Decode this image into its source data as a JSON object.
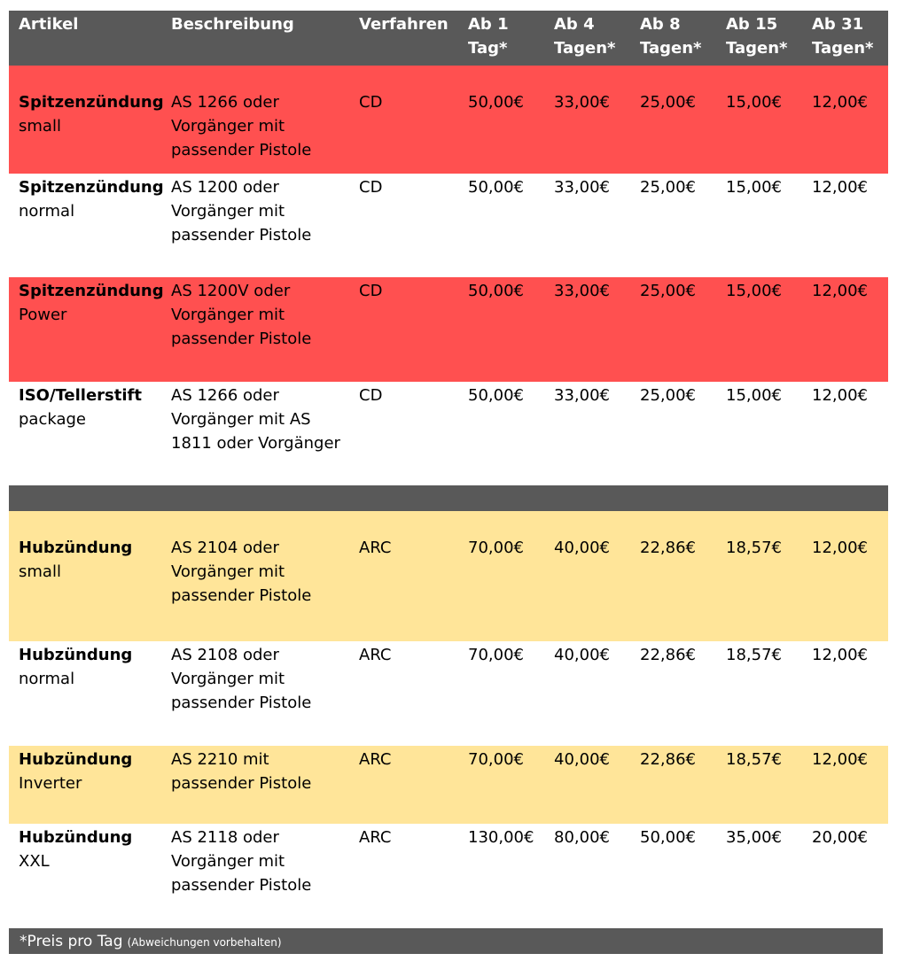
{
  "header": {
    "artikel": "Artikel",
    "beschreibung": "Beschreibung",
    "verfahren": "Verfahren",
    "p1": "Ab 1\nTag*",
    "p4": "Ab 4\nTagen*",
    "p8": "Ab 8\nTagen*",
    "p15": "Ab 15\nTagen*",
    "p31": "Ab 31\nTagen*"
  },
  "colors": {
    "header_bg": "#595959",
    "red_row": "#ff5050",
    "yellow_row": "#ffe599",
    "white_row": "#ffffff"
  },
  "group_cd": [
    {
      "name": "Spitzenzündung",
      "variant": "small",
      "desc": "AS 1266 oder Vorgänger mit passender Pistole",
      "proc": "CD",
      "p1": "50,00€",
      "p4": "33,00€",
      "p8": "25,00€",
      "p15": "15,00€",
      "p31": "12,00€"
    },
    {
      "name": "Spitzenzündung",
      "variant": "normal",
      "desc": "AS 1200 oder Vorgänger mit passender Pistole",
      "proc": "CD",
      "p1": "50,00€",
      "p4": "33,00€",
      "p8": "25,00€",
      "p15": "15,00€",
      "p31": "12,00€"
    },
    {
      "name": "Spitzenzündung",
      "variant": "Power",
      "desc": "AS 1200V oder Vorgänger mit passender Pistole",
      "proc": "CD",
      "p1": "50,00€",
      "p4": "33,00€",
      "p8": "25,00€",
      "p15": "15,00€",
      "p31": "12,00€"
    },
    {
      "name": "ISO/Tellerstift",
      "variant": "package",
      "desc": "AS 1266 oder Vorgänger mit AS 1811 oder Vorgänger",
      "proc": "CD",
      "p1": "50,00€",
      "p4": "33,00€",
      "p8": "25,00€",
      "p15": "15,00€",
      "p31": "12,00€"
    }
  ],
  "group_arc": [
    {
      "name": "Hubzündung",
      "variant": "small",
      "desc": "AS 2104 oder Vorgänger mit passender Pistole",
      "proc": "ARC",
      "p1": "70,00€",
      "p4": "40,00€",
      "p8": "22,86€",
      "p15": "18,57€",
      "p31": "12,00€"
    },
    {
      "name": "Hubzündung",
      "variant": "normal",
      "desc": "AS 2108 oder Vorgänger mit passender Pistole",
      "proc": "ARC",
      "p1": "70,00€",
      "p4": "40,00€",
      "p8": "22,86€",
      "p15": "18,57€",
      "p31": "12,00€"
    },
    {
      "name": "Hubzündung",
      "variant": "Inverter",
      "desc": "AS 2210 mit passender Pistole",
      "proc": "ARC",
      "p1": "70,00€",
      "p4": "40,00€",
      "p8": "22,86€",
      "p15": "18,57€",
      "p31": "12,00€"
    },
    {
      "name": "Hubzündung",
      "variant": "XXL",
      "desc": "AS 2118 oder Vorgänger mit passender Pistole",
      "proc": "ARC",
      "p1": "130,00€",
      "p4": "80,00€",
      "p8": "50,00€",
      "p15": "35,00€",
      "p31": "20,00€"
    }
  ],
  "footer": {
    "main": "*Preis pro Tag",
    "note": "(Abweichungen vorbehalten)"
  }
}
